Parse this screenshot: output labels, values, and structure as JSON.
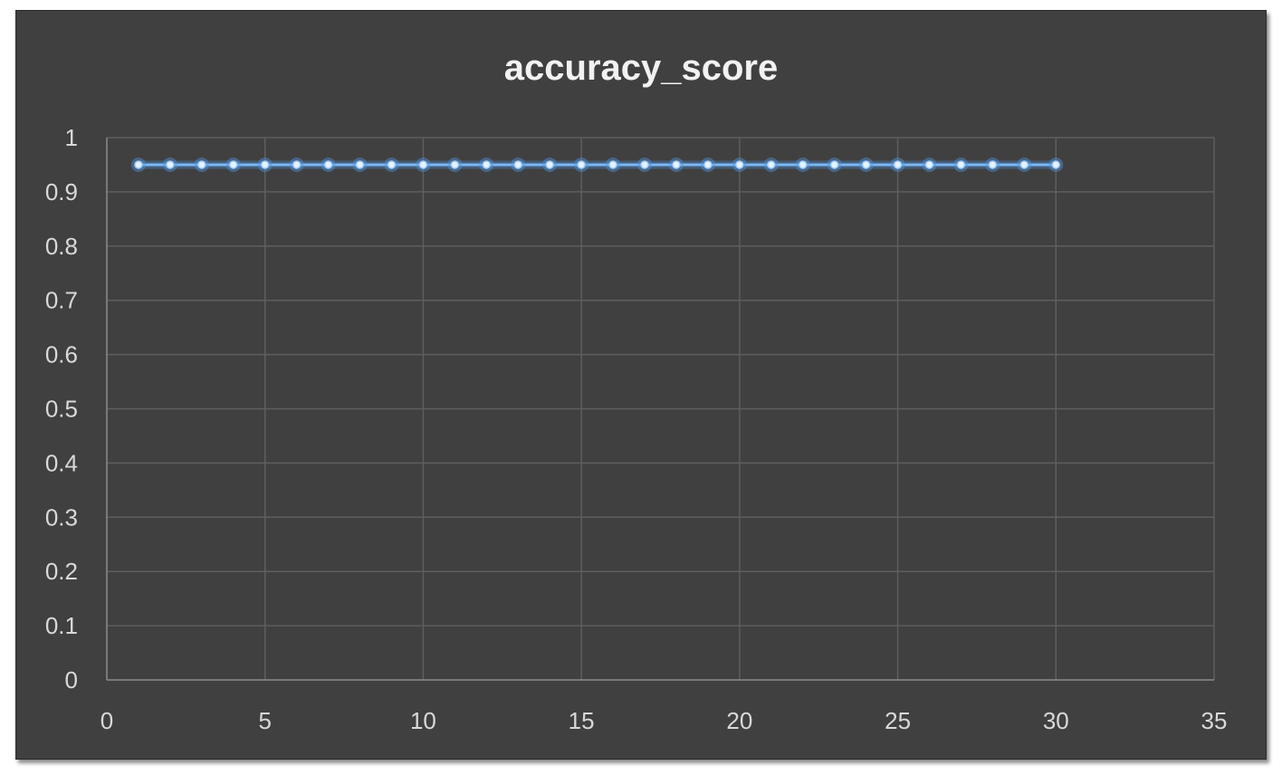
{
  "chart_data": {
    "type": "line",
    "title": "accuracy_score",
    "xlabel": "",
    "ylabel": "",
    "xlim": [
      0,
      35
    ],
    "ylim": [
      0,
      1
    ],
    "x_ticks": [
      0,
      5,
      10,
      15,
      20,
      25,
      30,
      35
    ],
    "y_ticks": [
      0,
      0.1,
      0.2,
      0.3,
      0.4,
      0.5,
      0.6,
      0.7,
      0.8,
      0.9,
      1
    ],
    "y_tick_labels": [
      "0",
      "0.1",
      "0.2",
      "0.3",
      "0.4",
      "0.5",
      "0.6",
      "0.7",
      "0.8",
      "0.9",
      "1"
    ],
    "grid": true,
    "legend": "none",
    "series": [
      {
        "color": "#5b9bd5",
        "x": [
          1,
          2,
          3,
          4,
          5,
          6,
          7,
          8,
          9,
          10,
          11,
          12,
          13,
          14,
          15,
          16,
          17,
          18,
          19,
          20,
          21,
          22,
          23,
          24,
          25,
          26,
          27,
          28,
          29,
          30
        ],
        "y": [
          0.95,
          0.95,
          0.95,
          0.95,
          0.95,
          0.95,
          0.95,
          0.95,
          0.95,
          0.95,
          0.95,
          0.95,
          0.95,
          0.95,
          0.95,
          0.95,
          0.95,
          0.95,
          0.95,
          0.95,
          0.95,
          0.95,
          0.95,
          0.95,
          0.95,
          0.95,
          0.95,
          0.95,
          0.95,
          0.95
        ]
      }
    ]
  }
}
